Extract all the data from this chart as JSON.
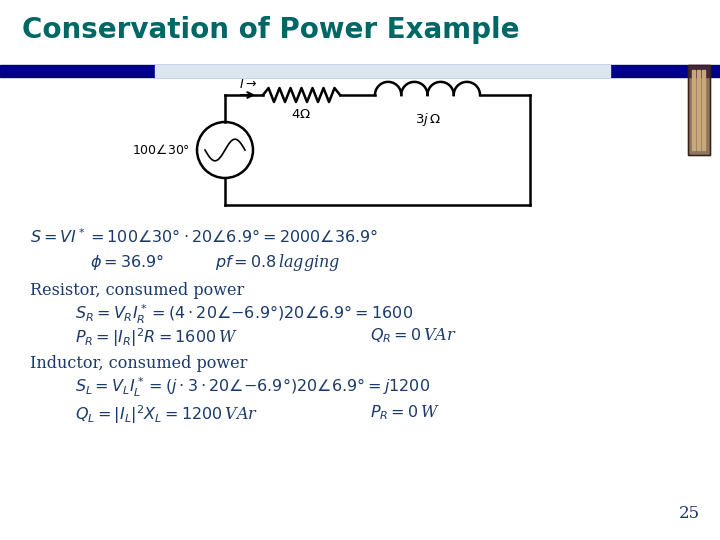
{
  "title": "Conservation of Power Example",
  "title_color": "#006666",
  "title_fontsize": 20,
  "bg_color": "#ffffff",
  "header_bar_color": "#00008B",
  "slide_number": "25",
  "text_color": "#1a3a6b",
  "circuit_color": "#000000",
  "circuit_bg": "#dce6f0"
}
